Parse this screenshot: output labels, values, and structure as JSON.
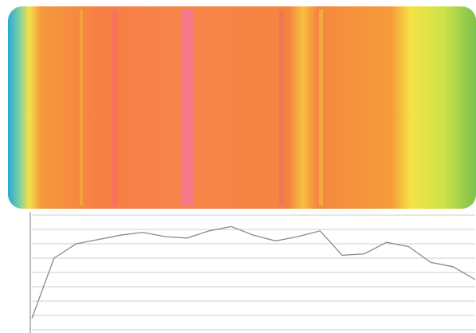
{
  "chart_data": {
    "type": "line",
    "values": [
      0.8,
      5.0,
      6.0,
      6.3,
      6.6,
      6.8,
      6.5,
      6.4,
      6.9,
      7.2,
      6.6,
      6.2,
      6.5,
      6.9,
      5.2,
      5.3,
      6.1,
      5.8,
      4.7,
      4.4,
      3.5
    ],
    "color": "#8a8a8a",
    "ylim": [
      0,
      8
    ],
    "yticks": [
      0,
      1,
      2,
      3,
      4,
      5,
      6,
      7,
      8
    ],
    "grid": true
  }
}
